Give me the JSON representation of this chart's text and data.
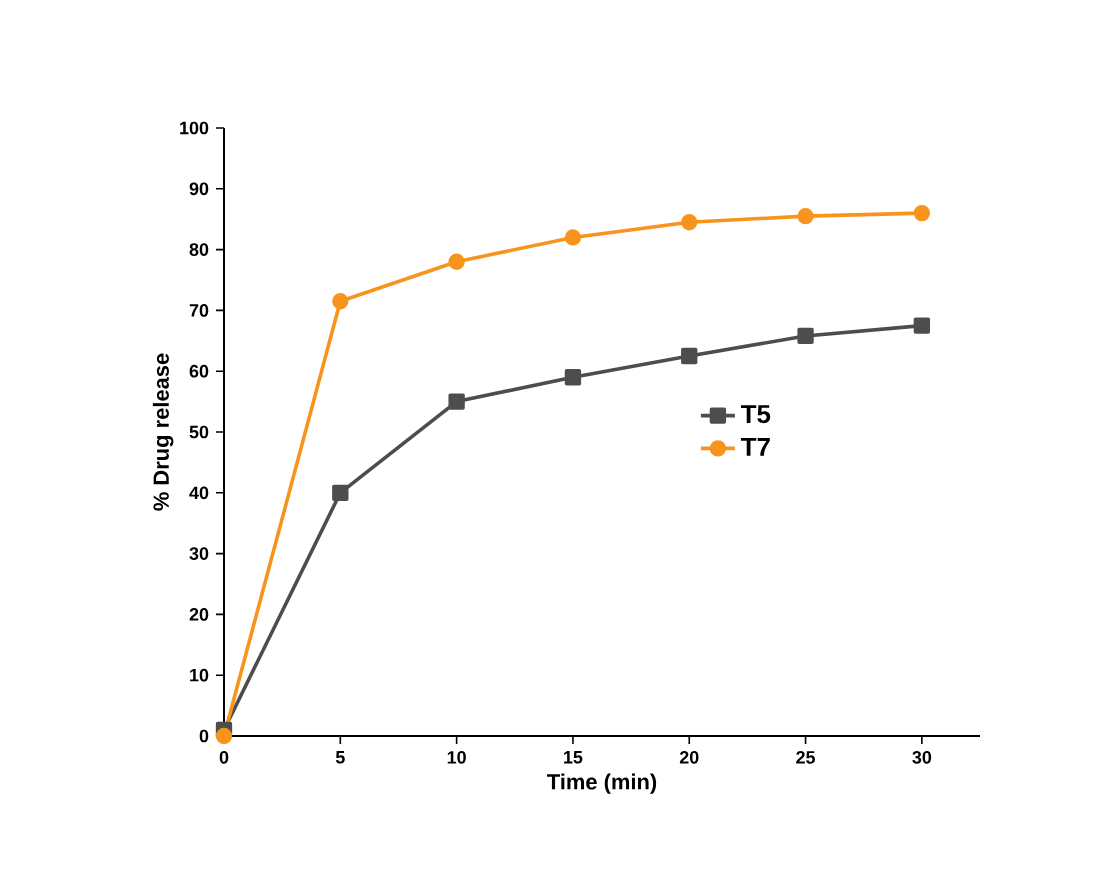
{
  "chart_data": {
    "type": "line",
    "xlabel": "Time (min)",
    "ylabel": "% Drug release",
    "x": [
      0,
      5,
      10,
      15,
      20,
      25,
      30
    ],
    "series": [
      {
        "name": "T5",
        "color": "#4d4d4d",
        "marker": "square",
        "values": [
          1,
          40,
          55,
          59,
          62.5,
          65.8,
          67.5
        ]
      },
      {
        "name": "T7",
        "color": "#f7941d",
        "marker": "circle",
        "values": [
          0,
          71.5,
          78,
          82,
          84.5,
          85.5,
          86
        ]
      }
    ],
    "xlim": [
      0,
      32.5
    ],
    "xticks": [
      0,
      5,
      10,
      15,
      20,
      25,
      30
    ],
    "ylim": [
      0,
      100
    ],
    "yticks": [
      0,
      10,
      20,
      30,
      40,
      50,
      60,
      70,
      80,
      90,
      100
    ],
    "grid": false,
    "legend": "right",
    "line_style": "solid"
  }
}
